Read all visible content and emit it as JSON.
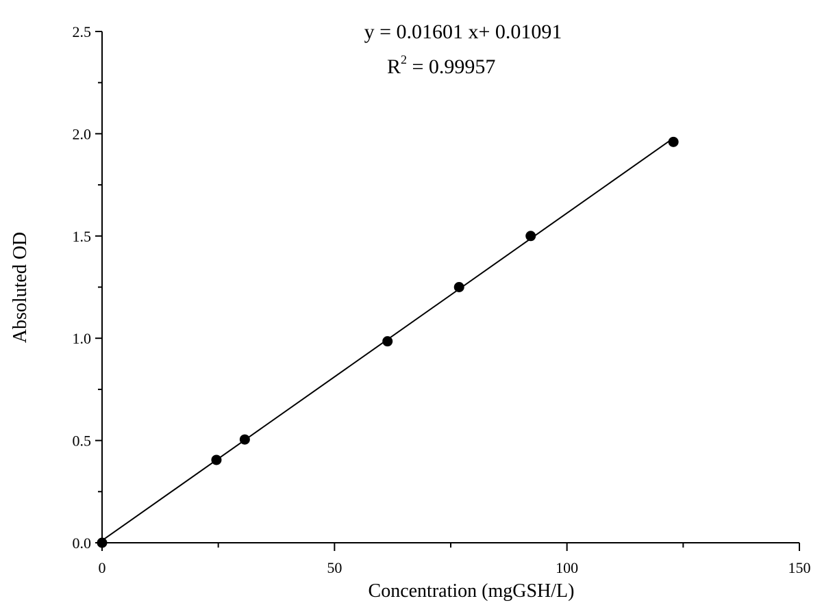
{
  "chart_data": {
    "type": "scatter",
    "title": "",
    "xlabel": "Concentration (mgGSH/L)",
    "ylabel": "Absoluted OD",
    "xlim": [
      0,
      150
    ],
    "ylim": [
      0,
      2.5
    ],
    "x_ticks": [
      "0",
      "50",
      "100",
      "150"
    ],
    "y_ticks": [
      "0.0",
      "0.5",
      "1.0",
      "1.5",
      "2.0",
      "2.5"
    ],
    "x_tick_values": [
      0,
      50,
      100,
      150
    ],
    "y_tick_values": [
      0,
      0.5,
      1.0,
      1.5,
      2.0,
      2.5
    ],
    "grid": false,
    "series": [
      {
        "points": [
          {
            "x": 0,
            "y": 0.0
          },
          {
            "x": 24.6,
            "y": 0.405
          },
          {
            "x": 30.7,
            "y": 0.505
          },
          {
            "x": 61.4,
            "y": 0.985
          },
          {
            "x": 76.8,
            "y": 1.25
          },
          {
            "x": 92.2,
            "y": 1.5
          },
          {
            "x": 122.9,
            "y": 1.96
          }
        ]
      }
    ],
    "fit_line": {
      "slope": 0.01601,
      "intercept": 0.01091,
      "x_range": [
        0,
        122.9
      ]
    },
    "annotations": {
      "equation": "y = 0.01601 x+ 0.01091",
      "r2_label": "R",
      "r2_sup": "2",
      "r2_value": " = 0.99957"
    },
    "colors": {
      "points": "#000000",
      "line": "#000000",
      "axis": "#000000"
    }
  }
}
